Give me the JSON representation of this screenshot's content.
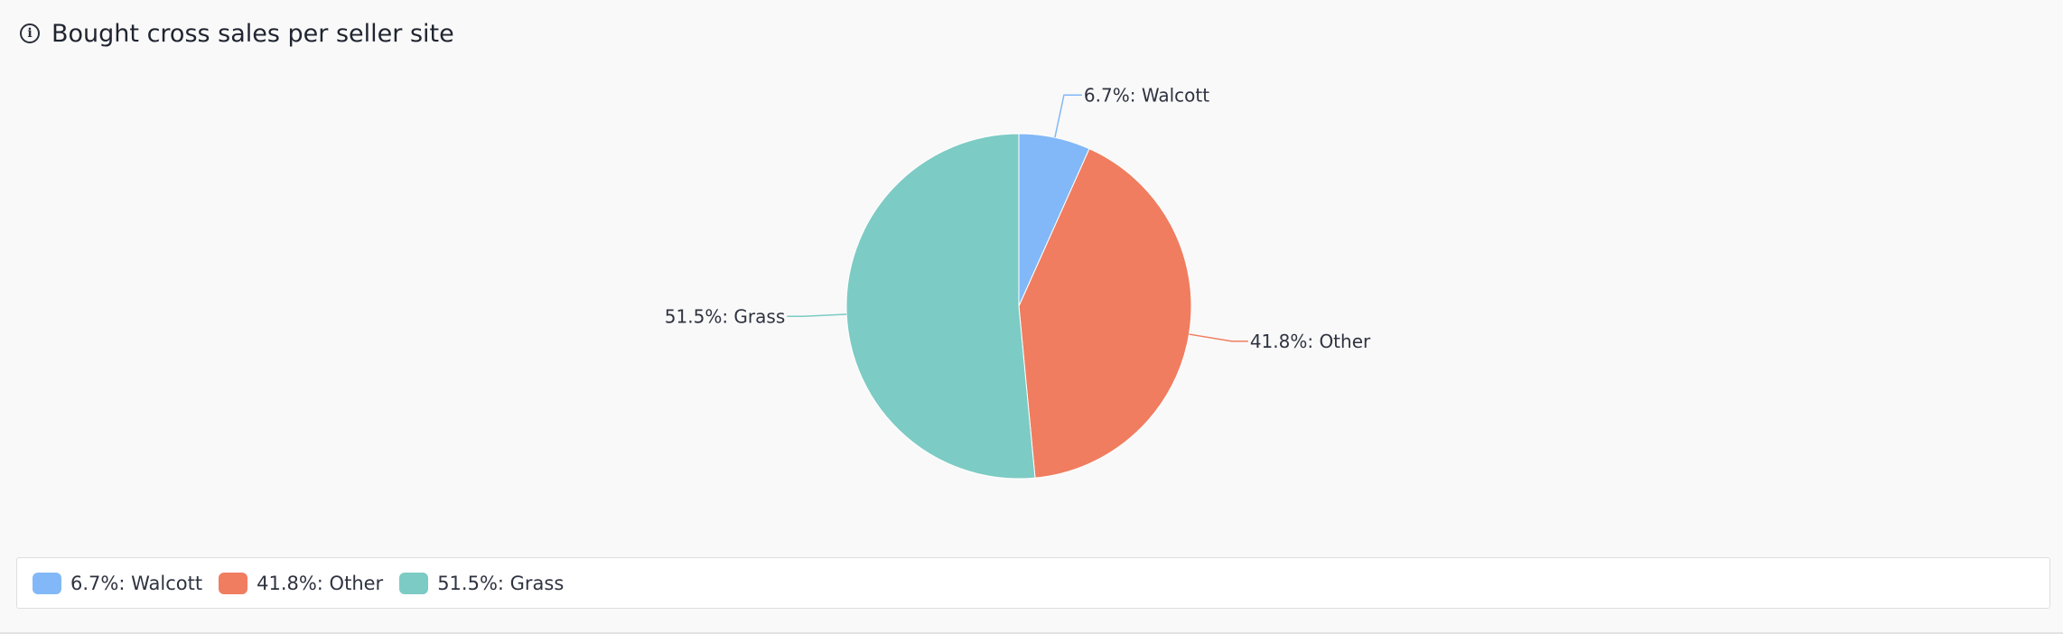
{
  "header": {
    "title": "Bought cross sales per seller site",
    "info_icon": "info-icon"
  },
  "colors": {
    "Walcott": "#82b8f7",
    "Other": "#f07d60",
    "Grass": "#7ccbc4",
    "background": "#f9f9f9"
  },
  "chart_data": {
    "type": "pie",
    "title": "Bought cross sales per seller site",
    "slices": [
      {
        "name": "Walcott",
        "value": 6.7,
        "label": "6.7%: Walcott",
        "color": "#82b8f7"
      },
      {
        "name": "Other",
        "value": 41.8,
        "label": "41.8%: Other",
        "color": "#f07d60"
      },
      {
        "name": "Grass",
        "value": 51.5,
        "label": "51.5%: Grass",
        "color": "#7ccbc4"
      }
    ],
    "legend_position": "bottom"
  },
  "legend": {
    "items": [
      {
        "label": "6.7%: Walcott",
        "color": "#82b8f7"
      },
      {
        "label": "41.8%: Other",
        "color": "#f07d60"
      },
      {
        "label": "51.5%: Grass",
        "color": "#7ccbc4"
      }
    ]
  }
}
